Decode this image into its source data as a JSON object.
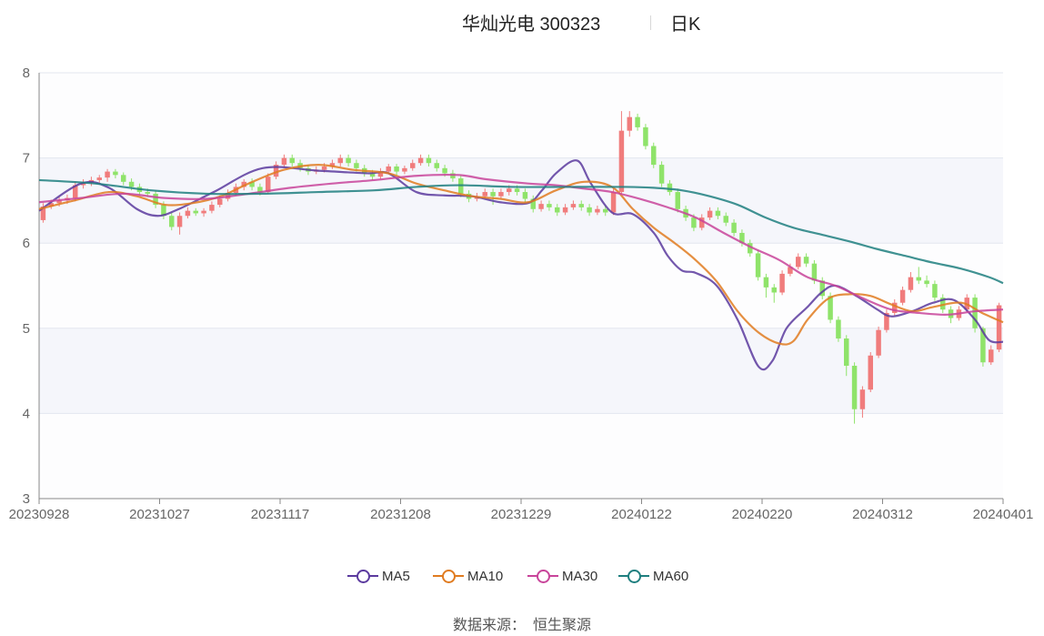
{
  "header": {
    "title": "华灿光电 300323",
    "period": "日K"
  },
  "legend": [
    {
      "name": "MA5",
      "color": "#5b3a9e"
    },
    {
      "name": "MA10",
      "color": "#e07b20"
    },
    {
      "name": "MA30",
      "color": "#c8449a"
    },
    {
      "name": "MA60",
      "color": "#1f7f7f"
    }
  ],
  "source": {
    "label": "数据来源：",
    "value": "恒生聚源"
  },
  "colors": {
    "up": "#f07c7c",
    "down": "#8fe36a",
    "grid": "#e3e6ef",
    "band": "#f5f6fb"
  },
  "chart_data": {
    "type": "candlestick",
    "title": "华灿光电 300323 日K",
    "ylim": [
      3,
      8
    ],
    "yticks": [
      3,
      4,
      5,
      6,
      7,
      8
    ],
    "xlim": [
      "20230928",
      "20240401"
    ],
    "xticks": [
      "20230928",
      "20231027",
      "20231117",
      "20231208",
      "20231229",
      "20240122",
      "20240220",
      "20240312",
      "20240401"
    ],
    "candle_count": 118,
    "candles": [
      [
        6.27,
        6.43,
        6.47,
        6.24
      ],
      [
        6.43,
        6.47,
        6.51,
        6.4
      ],
      [
        6.47,
        6.5,
        6.54,
        6.43
      ],
      [
        6.5,
        6.53,
        6.57,
        6.46
      ],
      [
        6.53,
        6.68,
        6.72,
        6.49
      ],
      [
        6.68,
        6.71,
        6.75,
        6.64
      ],
      [
        6.71,
        6.74,
        6.78,
        6.67
      ],
      [
        6.74,
        6.77,
        6.8,
        6.71
      ],
      [
        6.77,
        6.84,
        6.87,
        6.72
      ],
      [
        6.84,
        6.8,
        6.87,
        6.76
      ],
      [
        6.8,
        6.72,
        6.83,
        6.68
      ],
      [
        6.72,
        6.66,
        6.76,
        6.62
      ],
      [
        6.66,
        6.6,
        6.7,
        6.56
      ],
      [
        6.6,
        6.58,
        6.64,
        6.54
      ],
      [
        6.58,
        6.45,
        6.62,
        6.41
      ],
      [
        6.45,
        6.32,
        6.49,
        6.28
      ],
      [
        6.32,
        6.19,
        6.36,
        6.15
      ],
      [
        6.19,
        6.32,
        6.36,
        6.1
      ],
      [
        6.32,
        6.38,
        6.42,
        6.29
      ],
      [
        6.38,
        6.35,
        6.41,
        6.32
      ],
      [
        6.35,
        6.38,
        6.41,
        6.31
      ],
      [
        6.38,
        6.45,
        6.49,
        6.35
      ],
      [
        6.45,
        6.52,
        6.56,
        6.42
      ],
      [
        6.52,
        6.59,
        6.63,
        6.49
      ],
      [
        6.59,
        6.66,
        6.7,
        6.56
      ],
      [
        6.66,
        6.72,
        6.75,
        6.62
      ],
      [
        6.72,
        6.66,
        6.76,
        6.62
      ],
      [
        6.66,
        6.6,
        6.7,
        6.56
      ],
      [
        6.6,
        6.78,
        6.82,
        6.58
      ],
      [
        6.78,
        6.92,
        6.96,
        6.75
      ],
      [
        6.92,
        7.0,
        7.04,
        6.89
      ],
      [
        7.0,
        6.94,
        7.04,
        6.9
      ],
      [
        6.94,
        6.88,
        6.98,
        6.84
      ],
      [
        6.88,
        6.84,
        6.92,
        6.8
      ],
      [
        6.84,
        6.86,
        6.9,
        6.81
      ],
      [
        6.86,
        6.9,
        6.94,
        6.83
      ],
      [
        6.9,
        6.94,
        6.98,
        6.87
      ],
      [
        6.94,
        7.0,
        7.04,
        6.9
      ],
      [
        7.0,
        6.94,
        7.04,
        6.9
      ],
      [
        6.94,
        6.88,
        6.98,
        6.84
      ],
      [
        6.88,
        6.82,
        6.92,
        6.78
      ],
      [
        6.82,
        6.78,
        6.86,
        6.74
      ],
      [
        6.78,
        6.84,
        6.88,
        6.75
      ],
      [
        6.84,
        6.9,
        6.93,
        6.81
      ],
      [
        6.9,
        6.84,
        6.93,
        6.8
      ],
      [
        6.84,
        6.88,
        6.91,
        6.81
      ],
      [
        6.88,
        6.94,
        6.98,
        6.85
      ],
      [
        6.94,
        7.0,
        7.04,
        6.91
      ],
      [
        7.0,
        6.94,
        7.04,
        6.9
      ],
      [
        6.94,
        6.88,
        6.98,
        6.84
      ],
      [
        6.88,
        6.82,
        6.92,
        6.78
      ],
      [
        6.82,
        6.76,
        6.86,
        6.72
      ],
      [
        6.76,
        6.58,
        6.8,
        6.54
      ],
      [
        6.58,
        6.52,
        6.62,
        6.48
      ],
      [
        6.52,
        6.55,
        6.59,
        6.49
      ],
      [
        6.55,
        6.6,
        6.64,
        6.52
      ],
      [
        6.6,
        6.55,
        6.64,
        6.45
      ],
      [
        6.55,
        6.6,
        6.64,
        6.52
      ],
      [
        6.6,
        6.64,
        6.68,
        6.56
      ],
      [
        6.64,
        6.6,
        6.68,
        6.56
      ],
      [
        6.6,
        6.52,
        6.64,
        6.48
      ],
      [
        6.52,
        6.4,
        6.56,
        6.36
      ],
      [
        6.4,
        6.46,
        6.5,
        6.37
      ],
      [
        6.46,
        6.42,
        6.5,
        6.38
      ],
      [
        6.42,
        6.36,
        6.46,
        6.32
      ],
      [
        6.36,
        6.42,
        6.46,
        6.33
      ],
      [
        6.42,
        6.46,
        6.5,
        6.39
      ],
      [
        6.46,
        6.42,
        6.5,
        6.38
      ],
      [
        6.42,
        6.36,
        6.46,
        6.32
      ],
      [
        6.36,
        6.4,
        6.44,
        6.33
      ],
      [
        6.4,
        6.36,
        6.44,
        6.32
      ],
      [
        6.36,
        6.6,
        6.64,
        6.33
      ],
      [
        6.6,
        7.32,
        7.55,
        6.58
      ],
      [
        7.32,
        7.48,
        7.55,
        7.25
      ],
      [
        7.48,
        7.36,
        7.52,
        7.32
      ],
      [
        7.36,
        7.14,
        7.4,
        7.1
      ],
      [
        7.14,
        6.92,
        7.18,
        6.88
      ],
      [
        6.92,
        6.7,
        6.96,
        6.66
      ],
      [
        6.7,
        6.6,
        6.74,
        6.56
      ],
      [
        6.6,
        6.4,
        6.64,
        6.36
      ],
      [
        6.4,
        6.3,
        6.44,
        6.26
      ],
      [
        6.3,
        6.18,
        6.34,
        6.14
      ],
      [
        6.18,
        6.3,
        6.34,
        6.15
      ],
      [
        6.3,
        6.38,
        6.42,
        6.27
      ],
      [
        6.38,
        6.32,
        6.42,
        6.28
      ],
      [
        6.32,
        6.24,
        6.36,
        6.2
      ],
      [
        6.24,
        6.12,
        6.28,
        6.08
      ],
      [
        6.12,
        6.0,
        6.16,
        5.96
      ],
      [
        6.0,
        5.88,
        6.04,
        5.84
      ],
      [
        5.88,
        5.6,
        5.92,
        5.56
      ],
      [
        5.6,
        5.48,
        5.64,
        5.36
      ],
      [
        5.48,
        5.42,
        5.52,
        5.3
      ],
      [
        5.42,
        5.64,
        5.68,
        5.39
      ],
      [
        5.64,
        5.72,
        5.76,
        5.61
      ],
      [
        5.72,
        5.84,
        5.88,
        5.69
      ],
      [
        5.84,
        5.76,
        5.88,
        5.72
      ],
      [
        5.76,
        5.56,
        5.8,
        5.52
      ],
      [
        5.56,
        5.38,
        5.6,
        5.34
      ],
      [
        5.38,
        5.1,
        5.42,
        5.06
      ],
      [
        5.1,
        4.88,
        5.14,
        4.84
      ],
      [
        4.88,
        4.56,
        4.92,
        4.44
      ],
      [
        4.56,
        4.05,
        4.6,
        3.88
      ],
      [
        4.05,
        4.28,
        4.32,
        3.95
      ],
      [
        4.28,
        4.68,
        4.72,
        4.25
      ],
      [
        4.68,
        4.98,
        5.02,
        4.65
      ],
      [
        4.98,
        5.18,
        5.22,
        4.95
      ],
      [
        5.18,
        5.3,
        5.34,
        5.15
      ],
      [
        5.3,
        5.45,
        5.49,
        5.27
      ],
      [
        5.45,
        5.6,
        5.66,
        5.42
      ],
      [
        5.6,
        5.56,
        5.72,
        5.52
      ],
      [
        5.56,
        5.52,
        5.62,
        5.48
      ],
      [
        5.52,
        5.36,
        5.56,
        5.32
      ],
      [
        5.36,
        5.22,
        5.4,
        5.18
      ],
      [
        5.22,
        5.12,
        5.26,
        5.06
      ],
      [
        5.12,
        5.22,
        5.26,
        5.09
      ],
      [
        5.22,
        5.36,
        5.4,
        5.19
      ],
      [
        5.36,
        5.0,
        5.4,
        4.95
      ],
      [
        5.0,
        4.6,
        5.02,
        4.55
      ],
      [
        4.6,
        4.75,
        4.8,
        4.57
      ],
      [
        4.75,
        5.27,
        5.3,
        4.72
      ]
    ],
    "series": [
      {
        "name": "MA5",
        "values": [
          [
            0,
            6.38
          ],
          [
            6,
            6.7
          ],
          [
            10,
            6.65
          ],
          [
            14,
            6.4
          ],
          [
            17,
            6.32
          ],
          [
            20,
            6.4
          ],
          [
            25,
            6.6
          ],
          [
            32,
            6.88
          ],
          [
            40,
            6.85
          ],
          [
            47,
            6.82
          ],
          [
            50,
            6.82
          ],
          [
            54,
            6.6
          ],
          [
            58,
            6.56
          ],
          [
            62,
            6.55
          ],
          [
            66,
            6.48
          ],
          [
            70,
            6.47
          ],
          [
            72,
            6.62
          ],
          [
            74,
            6.82
          ],
          [
            77,
            6.97
          ],
          [
            79,
            6.7
          ],
          [
            82,
            6.36
          ],
          [
            85,
            6.34
          ],
          [
            88,
            6.12
          ],
          [
            90,
            5.85
          ],
          [
            92,
            5.68
          ],
          [
            94,
            5.65
          ],
          [
            97,
            5.5
          ],
          [
            100,
            5.1
          ],
          [
            103,
            4.55
          ],
          [
            105,
            4.62
          ],
          [
            107,
            5.0
          ],
          [
            110,
            5.25
          ],
          [
            112,
            5.42
          ],
          [
            114,
            5.5
          ],
          [
            117,
            5.38
          ],
          [
            120,
            5.22
          ],
          [
            122,
            5.14
          ],
          [
            125,
            5.2
          ],
          [
            128,
            5.3
          ],
          [
            131,
            5.33
          ],
          [
            134,
            5.1
          ],
          [
            136,
            4.86
          ],
          [
            138,
            4.84
          ]
        ]
      },
      {
        "name": "MA10",
        "values": [
          [
            0,
            6.4
          ],
          [
            5,
            6.5
          ],
          [
            10,
            6.6
          ],
          [
            14,
            6.55
          ],
          [
            18,
            6.45
          ],
          [
            22,
            6.47
          ],
          [
            26,
            6.55
          ],
          [
            30,
            6.7
          ],
          [
            35,
            6.86
          ],
          [
            40,
            6.92
          ],
          [
            45,
            6.86
          ],
          [
            50,
            6.82
          ],
          [
            54,
            6.7
          ],
          [
            58,
            6.62
          ],
          [
            62,
            6.55
          ],
          [
            66,
            6.52
          ],
          [
            70,
            6.48
          ],
          [
            74,
            6.62
          ],
          [
            78,
            6.72
          ],
          [
            82,
            6.66
          ],
          [
            85,
            6.4
          ],
          [
            88,
            6.18
          ],
          [
            91,
            6.0
          ],
          [
            94,
            5.8
          ],
          [
            97,
            5.55
          ],
          [
            100,
            5.2
          ],
          [
            103,
            4.95
          ],
          [
            106,
            4.82
          ],
          [
            108,
            4.85
          ],
          [
            110,
            5.1
          ],
          [
            113,
            5.35
          ],
          [
            116,
            5.4
          ],
          [
            119,
            5.38
          ],
          [
            122,
            5.28
          ],
          [
            125,
            5.2
          ],
          [
            128,
            5.25
          ],
          [
            132,
            5.3
          ],
          [
            135,
            5.18
          ],
          [
            138,
            5.07
          ]
        ]
      },
      {
        "name": "MA30",
        "values": [
          [
            0,
            6.48
          ],
          [
            6,
            6.53
          ],
          [
            12,
            6.58
          ],
          [
            18,
            6.53
          ],
          [
            24,
            6.52
          ],
          [
            30,
            6.58
          ],
          [
            36,
            6.65
          ],
          [
            42,
            6.7
          ],
          [
            48,
            6.74
          ],
          [
            54,
            6.79
          ],
          [
            60,
            6.8
          ],
          [
            64,
            6.75
          ],
          [
            70,
            6.7
          ],
          [
            74,
            6.68
          ],
          [
            78,
            6.64
          ],
          [
            82,
            6.6
          ],
          [
            86,
            6.52
          ],
          [
            90,
            6.42
          ],
          [
            94,
            6.3
          ],
          [
            98,
            6.12
          ],
          [
            102,
            5.95
          ],
          [
            106,
            5.8
          ],
          [
            110,
            5.6
          ],
          [
            114,
            5.5
          ],
          [
            118,
            5.35
          ],
          [
            122,
            5.22
          ],
          [
            126,
            5.18
          ],
          [
            130,
            5.16
          ],
          [
            134,
            5.2
          ],
          [
            138,
            5.22
          ]
        ]
      },
      {
        "name": "MA60",
        "values": [
          [
            0,
            6.74
          ],
          [
            8,
            6.7
          ],
          [
            16,
            6.62
          ],
          [
            24,
            6.58
          ],
          [
            32,
            6.58
          ],
          [
            40,
            6.6
          ],
          [
            48,
            6.62
          ],
          [
            54,
            6.66
          ],
          [
            60,
            6.68
          ],
          [
            68,
            6.66
          ],
          [
            76,
            6.66
          ],
          [
            84,
            6.66
          ],
          [
            88,
            6.65
          ],
          [
            92,
            6.62
          ],
          [
            96,
            6.55
          ],
          [
            100,
            6.45
          ],
          [
            104,
            6.3
          ],
          [
            108,
            6.18
          ],
          [
            112,
            6.1
          ],
          [
            116,
            6.02
          ],
          [
            120,
            5.93
          ],
          [
            124,
            5.85
          ],
          [
            128,
            5.77
          ],
          [
            132,
            5.7
          ],
          [
            136,
            5.6
          ],
          [
            138,
            5.53
          ]
        ]
      }
    ]
  }
}
